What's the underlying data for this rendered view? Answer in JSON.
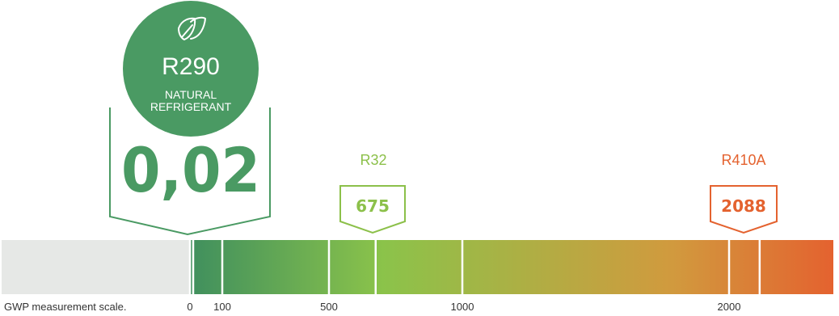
{
  "chart_data": {
    "type": "bar",
    "scale_label": "GWP measurement scale.",
    "ticks": [
      {
        "value": 0,
        "label": "0"
      },
      {
        "value": 100,
        "label": "100"
      },
      {
        "value": 500,
        "label": "500"
      },
      {
        "value": 1000,
        "label": "1000"
      },
      {
        "value": 2000,
        "label": "2000"
      }
    ],
    "markers": [
      {
        "name": "R290",
        "subtitle": "NATURAL REFRIGERANT",
        "value": 0.02,
        "value_label": "0,02",
        "color": "#4a9a63",
        "icon": "leaf-icon"
      },
      {
        "name": "R32",
        "value": 675,
        "value_label": "675",
        "color": "#8cc04a"
      },
      {
        "name": "R410A",
        "value": 2088,
        "value_label": "2088",
        "color": "#e4622f"
      }
    ],
    "gradient_colors": [
      "#3f8f5e",
      "#8bc34a",
      "#d19a3e",
      "#e4622f"
    ],
    "track_color": "#e6e8e6",
    "xlim": [
      0,
      2300
    ]
  }
}
